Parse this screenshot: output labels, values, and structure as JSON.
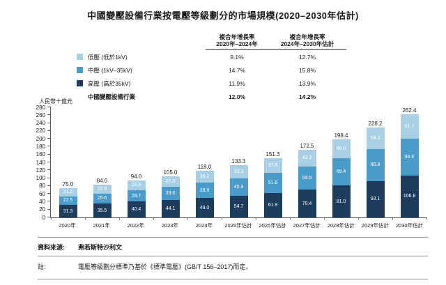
{
  "title": "中國變壓設備行業按電壓等級劃分的市場規模(2020–2030年估計)",
  "legend": {
    "col1_header": "複合年增長率\n2020年–2024年",
    "col2_header": "複合年增長率\n2024年–2030年估計",
    "rows": [
      {
        "label": "低壓 (低於1kV)",
        "cagr1": "9.1%",
        "cagr2": "12.7%",
        "color": "#a8cfe4"
      },
      {
        "label": "中壓 (1kV–35kV)",
        "cagr1": "14.7%",
        "cagr2": "15.8%",
        "color": "#4b9bca"
      },
      {
        "label": "高壓 (高於35kV)",
        "cagr1": "11.9%",
        "cagr2": "13.9%",
        "color": "#1d3c5e"
      },
      {
        "label": "中國變壓設備行業",
        "cagr1": "12.0%",
        "cagr2": "14.2%",
        "color": null,
        "bold": true
      }
    ]
  },
  "y_axis_unit": "人民幣十億元",
  "chart_data": {
    "type": "bar",
    "stacked": true,
    "title": "中國變壓設備行業按電壓等級劃分的市場規模(2020–2030年估計)",
    "ylabel": "人民幣十億元",
    "ylim": [
      0,
      280
    ],
    "ytick_step": 20,
    "grid": false,
    "legend_position": "top-left",
    "categories": [
      "2020年",
      "2021年",
      "2022年",
      "2023年",
      "2024年",
      "2025年估計",
      "2026年估計",
      "2027年估計",
      "2028年估計",
      "2029年估計",
      "2030年估計"
    ],
    "series": [
      {
        "name": "高壓 (高於35kV)",
        "color": "#1d3c5e",
        "values": [
          31.3,
          35.5,
          40.4,
          44.1,
          49.0,
          54.7,
          61.9,
          70.4,
          81.0,
          93.1,
          106.8
        ]
      },
      {
        "name": "中壓 (1kV–35kV)",
        "color": "#4b9bca",
        "values": [
          22.5,
          25.6,
          28.7,
          33.6,
          38.9,
          45.3,
          51.9,
          59.9,
          69.4,
          80.8,
          93.9
        ]
      },
      {
        "name": "低壓 (低於1kV)",
        "color": "#a8cfe4",
        "values": [
          21.2,
          22.9,
          24.9,
          27.3,
          30.1,
          33.3,
          37.5,
          42.3,
          48.0,
          54.3,
          61.7
        ]
      }
    ],
    "totals": [
      75.0,
      84.0,
      94.0,
      105.0,
      118.0,
      133.3,
      151.3,
      172.5,
      198.4,
      228.2,
      262.4
    ]
  },
  "footer": {
    "source_label": "資料來源:",
    "source_text": "弗若斯特沙利文",
    "note_label": "註:",
    "note_text": "電壓等級劃分標準乃基於《標準電壓》(GB/T 156–2017)而定。"
  }
}
